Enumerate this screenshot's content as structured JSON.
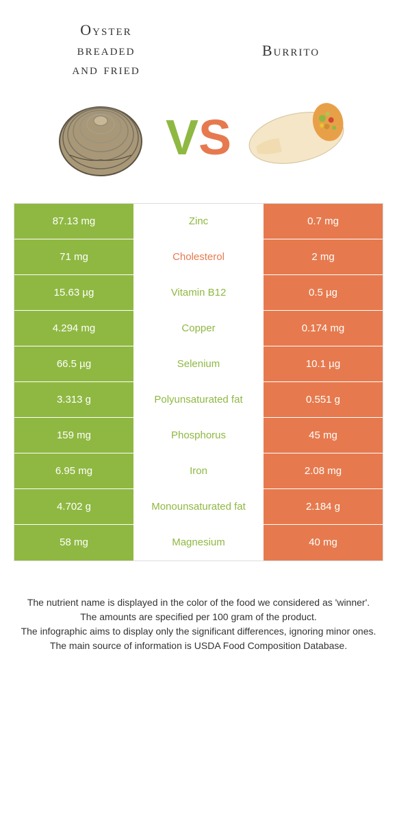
{
  "header": {
    "left_title": "Oyster\nbreaded\nand fried",
    "right_title": "Burrito",
    "vs_v": "V",
    "vs_s": "S"
  },
  "colors": {
    "left_bg": "#8fb842",
    "right_bg": "#e67a4e",
    "left_text": "#8fb842",
    "right_text": "#e67a4e",
    "white": "#ffffff"
  },
  "rows": [
    {
      "left": "87.13 mg",
      "nutrient": "Zinc",
      "right": "0.7 mg",
      "winner": "left"
    },
    {
      "left": "71 mg",
      "nutrient": "Cholesterol",
      "right": "2 mg",
      "winner": "right"
    },
    {
      "left": "15.63 µg",
      "nutrient": "Vitamin B12",
      "right": "0.5 µg",
      "winner": "left"
    },
    {
      "left": "4.294 mg",
      "nutrient": "Copper",
      "right": "0.174 mg",
      "winner": "left"
    },
    {
      "left": "66.5 µg",
      "nutrient": "Selenium",
      "right": "10.1 µg",
      "winner": "left"
    },
    {
      "left": "3.313 g",
      "nutrient": "Polyunsaturated fat",
      "right": "0.551 g",
      "winner": "left"
    },
    {
      "left": "159 mg",
      "nutrient": "Phosphorus",
      "right": "45 mg",
      "winner": "left"
    },
    {
      "left": "6.95 mg",
      "nutrient": "Iron",
      "right": "2.08 mg",
      "winner": "left"
    },
    {
      "left": "4.702 g",
      "nutrient": "Monounsaturated fat",
      "right": "2.184 g",
      "winner": "left"
    },
    {
      "left": "58 mg",
      "nutrient": "Magnesium",
      "right": "40 mg",
      "winner": "left"
    }
  ],
  "footer": {
    "line1": "The nutrient name is displayed in the color of the food we considered as 'winner'.",
    "line2": "The amounts are specified per 100 gram of the product.",
    "line3": "The infographic aims to display only the significant differences, ignoring minor ones.",
    "line4": "The main source of information is USDA Food Composition Database."
  }
}
